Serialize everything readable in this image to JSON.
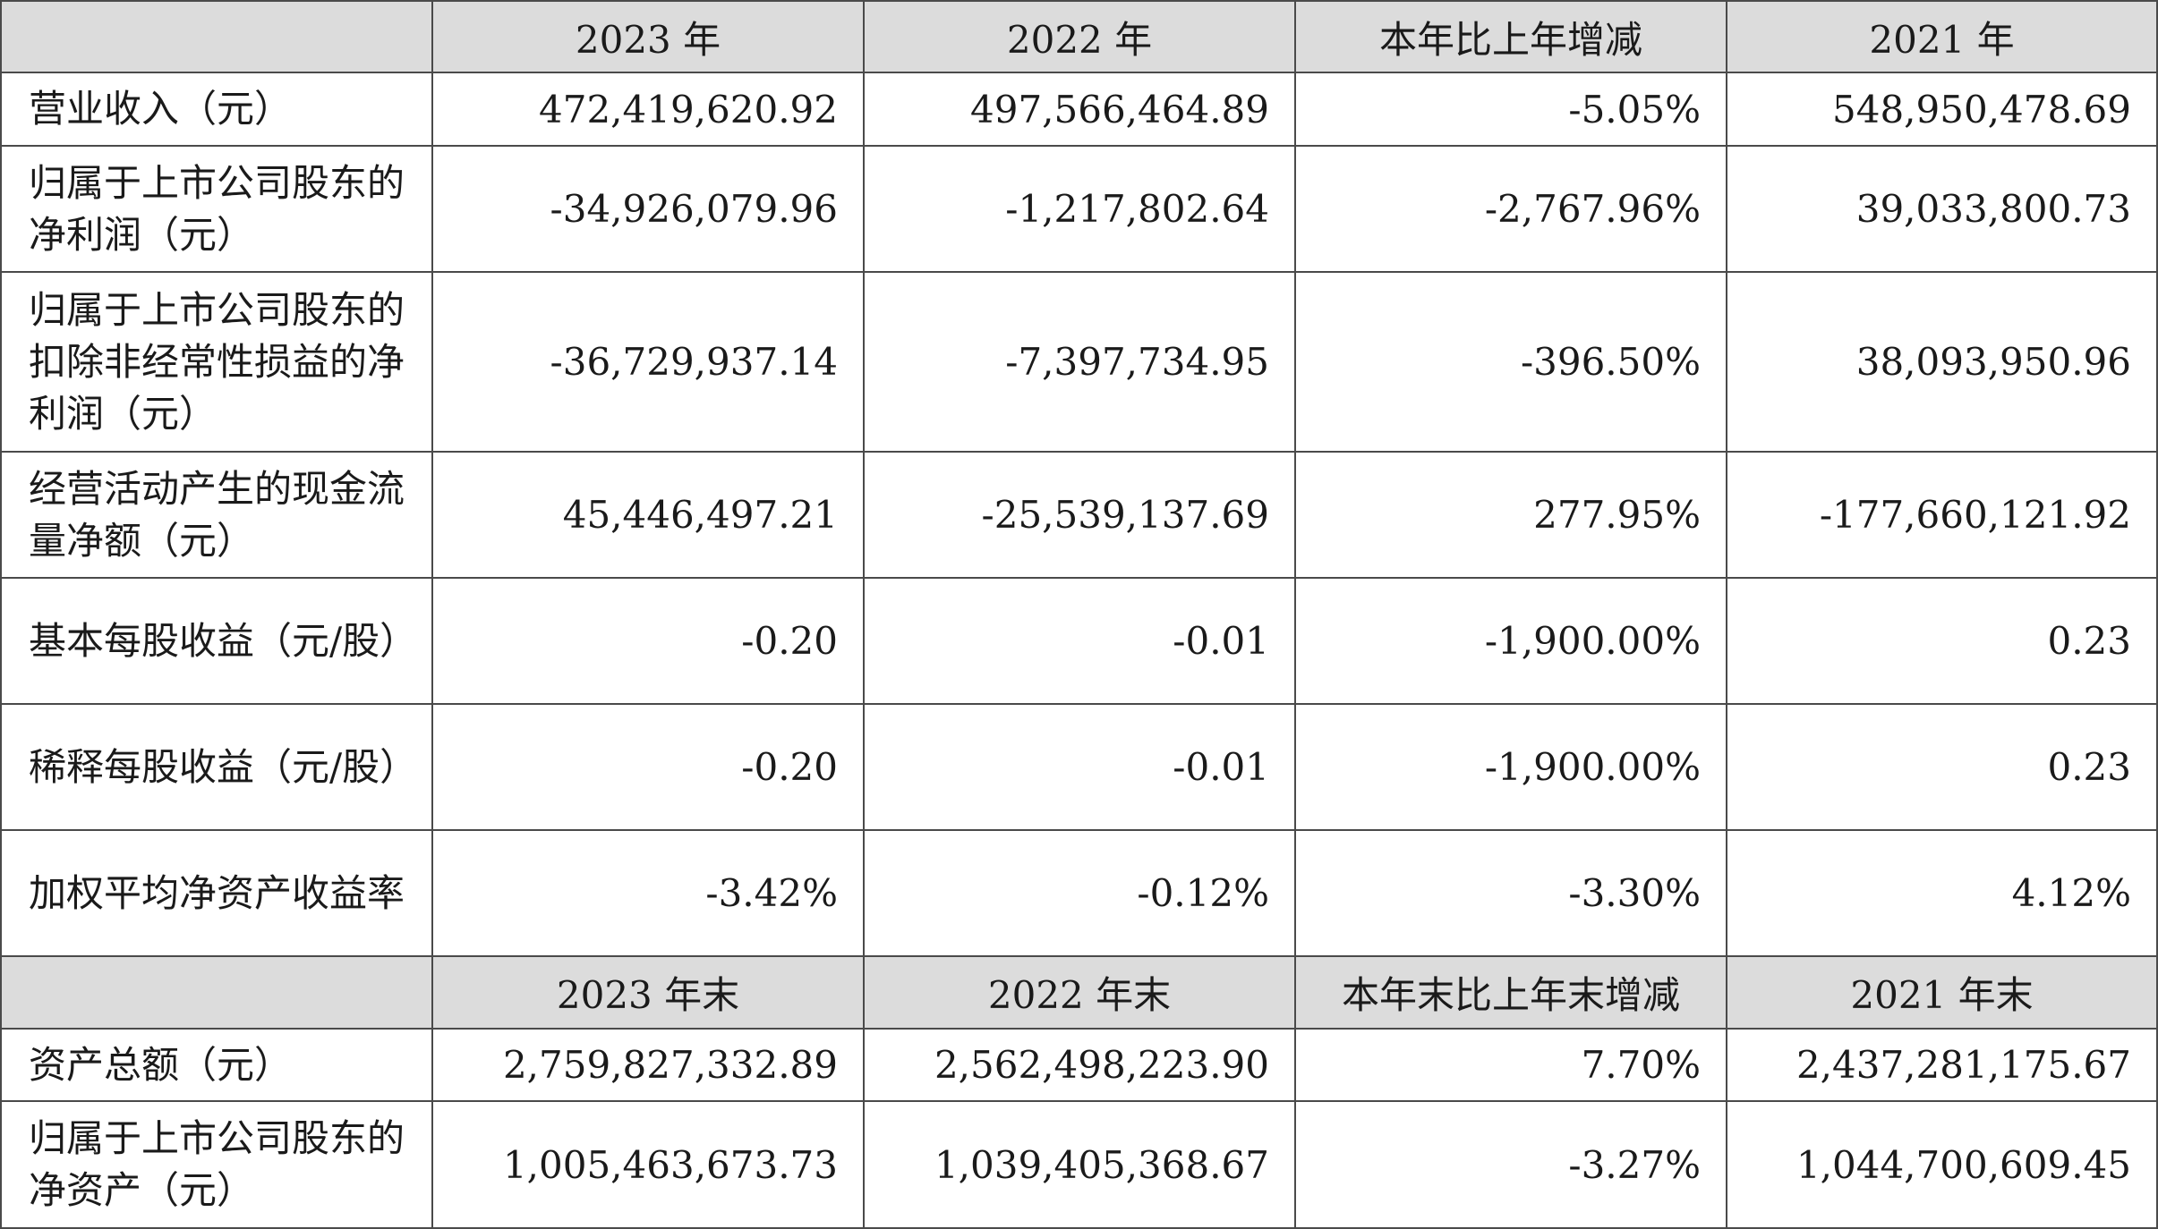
{
  "header1": {
    "c0": "",
    "c1": "2023 年",
    "c2": "2022 年",
    "c3": "本年比上年增减",
    "c4": "2021 年"
  },
  "rows1": [
    {
      "label": "营业收入（元）",
      "v2023": "472,419,620.92",
      "v2022": "497,566,464.89",
      "change": "-5.05%",
      "v2021": "548,950,478.69"
    },
    {
      "label": "归属于上市公司股东的净利润（元）",
      "v2023": "-34,926,079.96",
      "v2022": "-1,217,802.64",
      "change": "-2,767.96%",
      "v2021": "39,033,800.73"
    },
    {
      "label": "归属于上市公司股东的扣除非经常性损益的净利润（元）",
      "v2023": "-36,729,937.14",
      "v2022": "-7,397,734.95",
      "change": "-396.50%",
      "v2021": "38,093,950.96"
    },
    {
      "label": "经营活动产生的现金流量净额（元）",
      "v2023": "45,446,497.21",
      "v2022": "-25,539,137.69",
      "change": "277.95%",
      "v2021": "-177,660,121.92"
    },
    {
      "label": "基本每股收益（元/股）",
      "v2023": "-0.20",
      "v2022": "-0.01",
      "change": "-1,900.00%",
      "v2021": "0.23"
    },
    {
      "label": "稀释每股收益（元/股）",
      "v2023": "-0.20",
      "v2022": "-0.01",
      "change": "-1,900.00%",
      "v2021": "0.23"
    },
    {
      "label": "加权平均净资产收益率",
      "v2023": "-3.42%",
      "v2022": "-0.12%",
      "change": "-3.30%",
      "v2021": "4.12%"
    }
  ],
  "header2": {
    "c0": "",
    "c1": "2023 年末",
    "c2": "2022 年末",
    "c3": "本年末比上年末增减",
    "c4": "2021 年末"
  },
  "rows2": [
    {
      "label": "资产总额（元）",
      "v2023": "2,759,827,332.89",
      "v2022": "2,562,498,223.90",
      "change": "7.70%",
      "v2021": "2,437,281,175.67"
    },
    {
      "label": "归属于上市公司股东的净资产（元）",
      "v2023": "1,005,463,673.73",
      "v2022": "1,039,405,368.67",
      "change": "-3.27%",
      "v2021": "1,044,700,609.45"
    }
  ]
}
